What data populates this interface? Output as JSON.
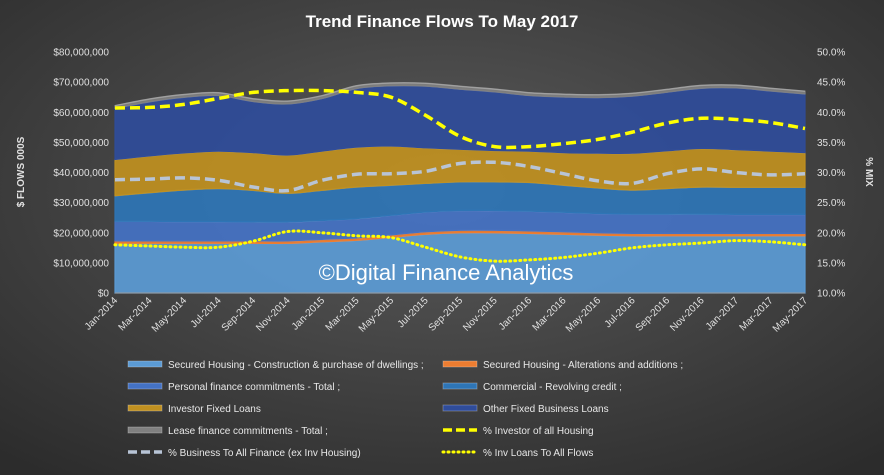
{
  "chart_data": {
    "type": "area",
    "title": "Trend Finance Flows To May 2017",
    "ylabel": "$ FLOWS 000S",
    "y2label": "% MIX",
    "watermark": "©Digital Finance Analytics",
    "ylim": [
      0,
      80000000
    ],
    "y2lim": [
      10,
      50
    ],
    "yticks": [
      "$0",
      "$10,000,000",
      "$20,000,000",
      "$30,000,000",
      "$40,000,000",
      "$50,000,000",
      "$60,000,000",
      "$70,000,000",
      "$80,000,000"
    ],
    "y2ticks": [
      "10.0%",
      "15.0%",
      "20.0%",
      "25.0%",
      "30.0%",
      "35.0%",
      "40.0%",
      "45.0%",
      "50.0%"
    ],
    "grid": false,
    "legend": "bottom",
    "x": [
      "Jan-2014",
      "Mar-2014",
      "May-2014",
      "Jul-2014",
      "Sep-2014",
      "Nov-2014",
      "Jan-2015",
      "Mar-2015",
      "May-2015",
      "Jul-2015",
      "Sep-2015",
      "Nov-2015",
      "Jan-2016",
      "Mar-2016",
      "May-2016",
      "Jul-2016",
      "Sep-2016",
      "Nov-2016",
      "Jan-2017",
      "Mar-2017",
      "May-2017"
    ],
    "stacked_series": [
      {
        "name": "Secured Housing - Construction & purchase of dwellings ;",
        "color": "#5b9bd5",
        "values": [
          16500000,
          16500000,
          16500000,
          16500000,
          16500000,
          16500000,
          17000000,
          17500000,
          18500000,
          19500000,
          20000000,
          20000000,
          19800000,
          19500000,
          19200000,
          19000000,
          19000000,
          19000000,
          19000000,
          19000000,
          19000000
        ]
      },
      {
        "name": "Secured Housing - Alterations and additions ;",
        "color": "#ed7d31",
        "values": [
          800000,
          800000,
          800000,
          800000,
          800000,
          800000,
          800000,
          800000,
          800000,
          800000,
          800000,
          800000,
          800000,
          800000,
          800000,
          800000,
          800000,
          800000,
          800000,
          800000,
          800000
        ]
      },
      {
        "name": "Personal finance commitments - Total ;",
        "color": "#4472c4",
        "values": [
          6500000,
          6500000,
          6400000,
          6400000,
          6300000,
          6300000,
          6300000,
          6400000,
          6500000,
          6600000,
          6600000,
          6600000,
          6600000,
          6500000,
          6400000,
          6400000,
          6400000,
          6400000,
          6300000,
          6300000,
          6300000
        ]
      },
      {
        "name": "Commercial - Revolving credit  ;",
        "color": "#2e75b6",
        "values": [
          8500000,
          9500000,
          10500000,
          11000000,
          10500000,
          9500000,
          10000000,
          10500000,
          10000000,
          9500000,
          9500000,
          9500000,
          9500000,
          9000000,
          8500000,
          8000000,
          8500000,
          9000000,
          9000000,
          9000000,
          9000000
        ]
      },
      {
        "name": "Investor Fixed Loans",
        "color": "#c09020",
        "values": [
          12000000,
          12200000,
          12300000,
          12400000,
          12500000,
          12700000,
          13000000,
          13200000,
          13000000,
          11800000,
          10800000,
          10400000,
          10400000,
          10800000,
          11500000,
          12200000,
          12500000,
          12800000,
          12500000,
          12000000,
          11500000
        ]
      },
      {
        "name": "Other Fixed Business Loans",
        "color": "#2f4c9a",
        "values": [
          17000000,
          18000000,
          18500000,
          18500000,
          17000000,
          17000000,
          17500000,
          19500000,
          20000000,
          20500000,
          20000000,
          19500000,
          18500000,
          18500000,
          18500000,
          19000000,
          19500000,
          20000000,
          20500000,
          20000000,
          19500000
        ]
      },
      {
        "name": "Lease finance commitments - Total ;",
        "color": "#808080",
        "values": [
          900000,
          900000,
          900000,
          900000,
          900000,
          900000,
          900000,
          900000,
          900000,
          900000,
          900000,
          900000,
          900000,
          900000,
          900000,
          900000,
          900000,
          900000,
          900000,
          900000,
          900000
        ]
      }
    ],
    "line_series": [
      {
        "name": "% Investor of all Housing",
        "color": "#ffff00",
        "style": "dash",
        "values": [
          40.7,
          40.8,
          41.3,
          42.3,
          43.3,
          43.6,
          43.6,
          43.3,
          42.5,
          39.5,
          36.0,
          34.3,
          34.3,
          34.8,
          35.5,
          36.7,
          38.2,
          39.0,
          38.8,
          38.3,
          37.3
        ]
      },
      {
        "name": "% Business To All Finance (ex Inv Housing)",
        "color": "#b8c4d6",
        "style": "dash",
        "values": [
          28.8,
          28.9,
          29.1,
          28.7,
          27.6,
          27.0,
          28.7,
          29.7,
          29.8,
          30.2,
          31.5,
          31.7,
          31.0,
          29.8,
          28.6,
          28.2,
          29.8,
          30.6,
          30.0,
          29.6,
          29.8
        ]
      },
      {
        "name": "% Inv Loans To All Flows",
        "color": "#ffff00",
        "style": "dot",
        "values": [
          18.0,
          17.8,
          17.6,
          17.6,
          18.6,
          20.2,
          20.0,
          19.5,
          19.2,
          17.6,
          16.0,
          15.3,
          15.5,
          15.9,
          16.6,
          17.5,
          18.0,
          18.3,
          18.7,
          18.5,
          18.0
        ]
      }
    ]
  }
}
